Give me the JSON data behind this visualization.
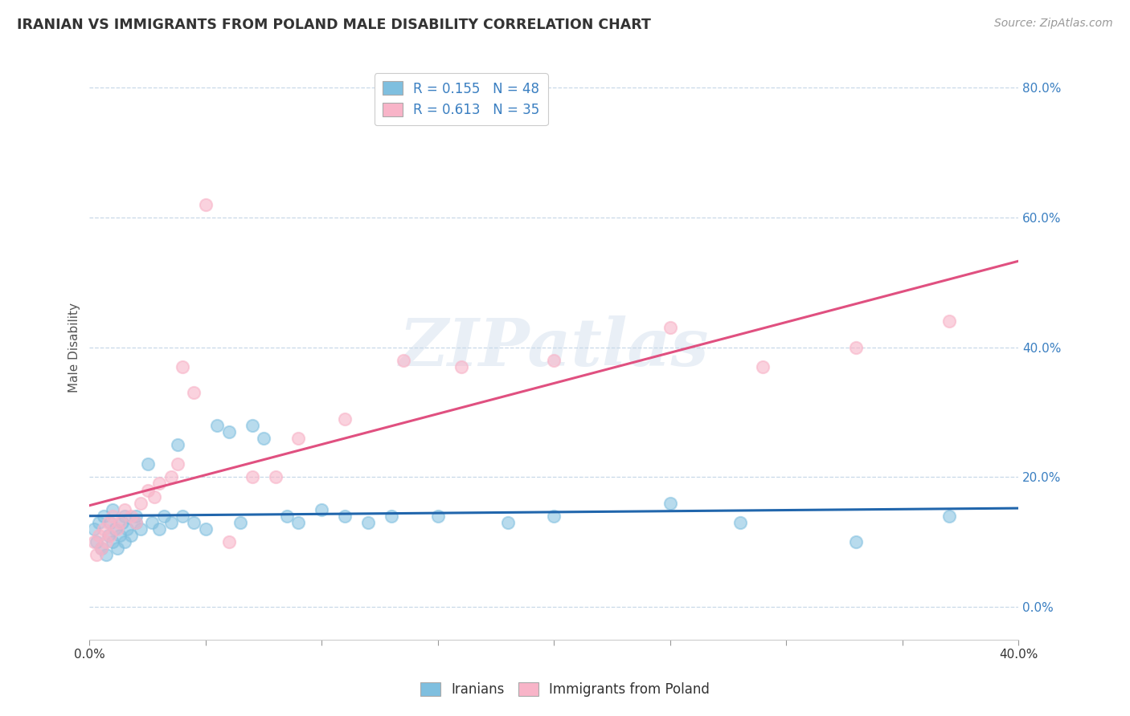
{
  "title": "IRANIAN VS IMMIGRANTS FROM POLAND MALE DISABILITY CORRELATION CHART",
  "source": "Source: ZipAtlas.com",
  "xlabel_iranians": "Iranians",
  "xlabel_poland": "Immigrants from Poland",
  "ylabel": "Male Disability",
  "xlim": [
    0.0,
    0.4
  ],
  "ylim": [
    -0.05,
    0.85
  ],
  "yticks": [
    0.0,
    0.2,
    0.4,
    0.6,
    0.8
  ],
  "xtick_positions": [
    0.0,
    0.05,
    0.1,
    0.15,
    0.2,
    0.25,
    0.3,
    0.35,
    0.4
  ],
  "xtick_labels_show": {
    "0.0": "0.0%",
    "0.40": "40.0%"
  },
  "r_iranian": 0.155,
  "n_iranian": 48,
  "r_poland": 0.613,
  "n_poland": 35,
  "color_iranian": "#7fbfdf",
  "color_poland": "#f8b4c8",
  "line_color_iranian": "#2166ac",
  "line_color_poland": "#e05080",
  "tick_color": "#3a7fc1",
  "background_color": "#ffffff",
  "grid_color": "#c8d8e8",
  "watermark": "ZIPatlas",
  "iranians_x": [
    0.002,
    0.003,
    0.004,
    0.005,
    0.006,
    0.007,
    0.008,
    0.009,
    0.01,
    0.01,
    0.011,
    0.012,
    0.013,
    0.014,
    0.015,
    0.015,
    0.016,
    0.018,
    0.02,
    0.02,
    0.022,
    0.025,
    0.027,
    0.03,
    0.032,
    0.035,
    0.038,
    0.04,
    0.045,
    0.05,
    0.055,
    0.06,
    0.065,
    0.07,
    0.075,
    0.085,
    0.09,
    0.1,
    0.11,
    0.12,
    0.13,
    0.15,
    0.18,
    0.2,
    0.25,
    0.28,
    0.33,
    0.37
  ],
  "iranians_y": [
    0.12,
    0.1,
    0.13,
    0.09,
    0.14,
    0.08,
    0.11,
    0.13,
    0.1,
    0.15,
    0.12,
    0.09,
    0.11,
    0.13,
    0.1,
    0.14,
    0.12,
    0.11,
    0.13,
    0.14,
    0.12,
    0.22,
    0.13,
    0.12,
    0.14,
    0.13,
    0.25,
    0.14,
    0.13,
    0.12,
    0.28,
    0.27,
    0.13,
    0.28,
    0.26,
    0.14,
    0.13,
    0.15,
    0.14,
    0.13,
    0.14,
    0.14,
    0.13,
    0.14,
    0.16,
    0.13,
    0.1,
    0.14
  ],
  "poland_x": [
    0.002,
    0.003,
    0.004,
    0.005,
    0.006,
    0.007,
    0.008,
    0.009,
    0.01,
    0.012,
    0.013,
    0.015,
    0.018,
    0.02,
    0.022,
    0.025,
    0.028,
    0.03,
    0.035,
    0.038,
    0.04,
    0.045,
    0.05,
    0.06,
    0.07,
    0.08,
    0.09,
    0.11,
    0.135,
    0.16,
    0.2,
    0.25,
    0.29,
    0.33,
    0.37
  ],
  "poland_y": [
    0.1,
    0.08,
    0.11,
    0.09,
    0.12,
    0.1,
    0.13,
    0.11,
    0.14,
    0.12,
    0.13,
    0.15,
    0.14,
    0.13,
    0.16,
    0.18,
    0.17,
    0.19,
    0.2,
    0.22,
    0.37,
    0.33,
    0.62,
    0.1,
    0.2,
    0.2,
    0.26,
    0.29,
    0.38,
    0.37,
    0.38,
    0.43,
    0.37,
    0.4,
    0.44
  ]
}
